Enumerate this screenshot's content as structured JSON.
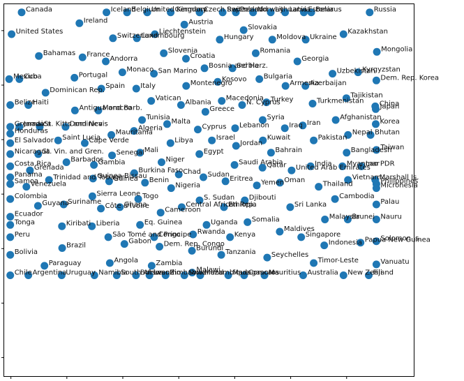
{
  "chart_data": {
    "type": "scatter",
    "title": "",
    "xlabel": "",
    "ylabel": "",
    "xlim": [
      -0.3,
      18.0
    ],
    "ylim": [
      -0.35,
      13.3
    ],
    "grid": false,
    "legend": "none",
    "point_color": "#1f77b4",
    "points": [
      {
        "label": "Canada",
        "x": 0.48,
        "y": 13.0
      },
      {
        "label": "Iceland",
        "x": 4.27,
        "y": 13.0
      },
      {
        "label": "Belgium",
        "x": 5.19,
        "y": 13.0
      },
      {
        "label": "United Kingdom",
        "x": 6.09,
        "y": 13.0
      },
      {
        "label": "Germany",
        "x": 7.14,
        "y": 13.0
      },
      {
        "label": "Czech Rep.",
        "x": 8.43,
        "y": 13.0
      },
      {
        "label": "Switzerland",
        "x": 9.46,
        "y": 13.0
      },
      {
        "label": "Poland",
        "x": 10.05,
        "y": 13.0
      },
      {
        "label": "Norway",
        "x": 10.82,
        "y": 13.0
      },
      {
        "label": "Lithuania",
        "x": 11.61,
        "y": 13.0
      },
      {
        "label": "Latvia",
        "x": 12.25,
        "y": 13.0
      },
      {
        "label": "Estonia",
        "x": 13.09,
        "y": 13.0
      },
      {
        "label": "Belarus",
        "x": 13.42,
        "y": 13.0
      },
      {
        "label": "Russia",
        "x": 16.03,
        "y": 13.0
      },
      {
        "label": "Ireland",
        "x": 3.06,
        "y": 12.6
      },
      {
        "label": "Austria",
        "x": 7.75,
        "y": 12.55
      },
      {
        "label": "Slovakia",
        "x": 10.4,
        "y": 12.35
      },
      {
        "label": "United States",
        "x": 0.03,
        "y": 12.2
      },
      {
        "label": "Liechtenstein",
        "x": 6.43,
        "y": 12.2
      },
      {
        "label": "Kazakhstan",
        "x": 14.86,
        "y": 12.2
      },
      {
        "label": "Switzerland",
        "x": 4.56,
        "y": 12.05
      },
      {
        "label": "Luxembourg",
        "x": 5.63,
        "y": 12.05
      },
      {
        "label": "Hungary",
        "x": 9.33,
        "y": 12.0
      },
      {
        "label": "Moldova",
        "x": 11.68,
        "y": 12.0
      },
      {
        "label": "Ukraine",
        "x": 13.17,
        "y": 12.0
      },
      {
        "label": "Mongolia",
        "x": 16.35,
        "y": 11.55
      },
      {
        "label": "Slovenia",
        "x": 6.83,
        "y": 11.5
      },
      {
        "label": "Romania",
        "x": 10.94,
        "y": 11.5
      },
      {
        "label": "Bahamas",
        "x": 1.25,
        "y": 11.4
      },
      {
        "label": "France",
        "x": 3.2,
        "y": 11.35
      },
      {
        "label": "Croatia",
        "x": 7.82,
        "y": 11.3
      },
      {
        "label": "Georgia",
        "x": 12.8,
        "y": 11.2
      },
      {
        "label": "Andorra",
        "x": 4.24,
        "y": 11.2
      },
      {
        "label": "Serbia",
        "x": 9.9,
        "y": 10.95
      },
      {
        "label": "Bosnia and Herz.",
        "x": 8.65,
        "y": 10.95
      },
      {
        "label": "Kyrgyzstan",
        "x": 15.51,
        "y": 10.8
      },
      {
        "label": "Monaco",
        "x": 4.98,
        "y": 10.8
      },
      {
        "label": "San Marino",
        "x": 6.39,
        "y": 10.75
      },
      {
        "label": "Uzbekistan",
        "x": 14.37,
        "y": 10.75
      },
      {
        "label": "Portugal",
        "x": 2.84,
        "y": 10.6
      },
      {
        "label": "Mexico",
        "x": -0.08,
        "y": 10.55
      },
      {
        "label": "Cuba",
        "x": 0.38,
        "y": 10.55
      },
      {
        "label": "Bulgaria",
        "x": 11.1,
        "y": 10.55
      },
      {
        "label": "Dem. Rep. Korea",
        "x": 16.33,
        "y": 10.5
      },
      {
        "label": "Kosovo",
        "x": 9.24,
        "y": 10.45
      },
      {
        "label": "Montenegro",
        "x": 7.83,
        "y": 10.3
      },
      {
        "label": "Armenia",
        "x": 12.27,
        "y": 10.3
      },
      {
        "label": "Azerbaijan",
        "x": 13.16,
        "y": 10.3
      },
      {
        "label": "Spain",
        "x": 4.04,
        "y": 10.2
      },
      {
        "label": "Italy",
        "x": 5.6,
        "y": 10.2
      },
      {
        "label": "Dominican Rep.",
        "x": 1.55,
        "y": 10.05
      },
      {
        "label": "Tajikistan",
        "x": 14.99,
        "y": 9.85
      },
      {
        "label": "Vatican",
        "x": 6.27,
        "y": 9.75
      },
      {
        "label": "Macedonia",
        "x": 9.42,
        "y": 9.75
      },
      {
        "label": "Turkey",
        "x": 11.42,
        "y": 9.7
      },
      {
        "label": "Albania",
        "x": 7.6,
        "y": 9.6
      },
      {
        "label": "N. Cyprus",
        "x": 10.33,
        "y": 9.6
      },
      {
        "label": "Turkmenistan",
        "x": 13.48,
        "y": 9.65
      },
      {
        "label": "Belize",
        "x": -0.03,
        "y": 9.6
      },
      {
        "label": "Haiti",
        "x": 0.78,
        "y": 9.6
      },
      {
        "label": "China",
        "x": 16.28,
        "y": 9.55
      },
      {
        "label": "Japan",
        "x": 16.3,
        "y": 9.45
      },
      {
        "label": "Antigua and Barb.",
        "x": 2.86,
        "y": 9.4
      },
      {
        "label": "Morocco",
        "x": 3.91,
        "y": 9.4
      },
      {
        "label": "Greece",
        "x": 8.69,
        "y": 9.35
      },
      {
        "label": "Tunisia",
        "x": 5.86,
        "y": 9.05
      },
      {
        "label": "Syria",
        "x": 11.25,
        "y": 9.05
      },
      {
        "label": "Afghanistan",
        "x": 14.51,
        "y": 9.05
      },
      {
        "label": "Korea",
        "x": 16.3,
        "y": 8.9
      },
      {
        "label": "Malta",
        "x": 6.98,
        "y": 8.9
      },
      {
        "label": "Iran",
        "x": 13.04,
        "y": 8.85
      },
      {
        "label": "Grenada",
        "x": -0.03,
        "y": 8.8
      },
      {
        "label": "Jamaica",
        "x": 0.38,
        "y": 8.8
      },
      {
        "label": "St. Kitts and Nevis",
        "x": 1.29,
        "y": 8.8
      },
      {
        "label": "Dominica",
        "x": 2.44,
        "y": 8.8
      },
      {
        "label": "Iraq",
        "x": 12.24,
        "y": 8.75
      },
      {
        "label": "Cyprus",
        "x": 8.35,
        "y": 8.7
      },
      {
        "label": "Lebanon",
        "x": 10.02,
        "y": 8.75
      },
      {
        "label": "Algeria",
        "x": 5.5,
        "y": 8.65
      },
      {
        "label": "Honduras",
        "x": -0.03,
        "y": 8.55
      },
      {
        "label": "Mauritania",
        "x": 4.49,
        "y": 8.5
      },
      {
        "label": "Nepal",
        "x": 15.06,
        "y": 8.5
      },
      {
        "label": "Bhutan",
        "x": 16.07,
        "y": 8.5
      },
      {
        "label": "Saint Lucia",
        "x": 2.11,
        "y": 8.3
      },
      {
        "label": "Israel",
        "x": 8.98,
        "y": 8.3
      },
      {
        "label": "Kuwait",
        "x": 11.26,
        "y": 8.3
      },
      {
        "label": "Pakistan",
        "x": 13.53,
        "y": 8.3
      },
      {
        "label": "El Salvador",
        "x": -0.03,
        "y": 8.2
      },
      {
        "label": "Cape Verde",
        "x": 3.3,
        "y": 8.2
      },
      {
        "label": "Libya",
        "x": 7.13,
        "y": 8.2
      },
      {
        "label": "Jordan",
        "x": 10.06,
        "y": 8.1
      },
      {
        "label": "Taiwan",
        "x": 16.33,
        "y": 7.95
      },
      {
        "label": "Bangladesh",
        "x": 15.0,
        "y": 7.85
      },
      {
        "label": "Mali",
        "x": 5.77,
        "y": 7.85
      },
      {
        "label": "Bahrain",
        "x": 11.62,
        "y": 7.85
      },
      {
        "label": "Nicaragua",
        "x": -0.03,
        "y": 7.8
      },
      {
        "label": "St. Vin. and Gren.",
        "x": 1.22,
        "y": 7.8
      },
      {
        "label": "Senegal",
        "x": 4.52,
        "y": 7.75
      },
      {
        "label": "Egypt",
        "x": 8.42,
        "y": 7.8
      },
      {
        "label": "Niger",
        "x": 6.73,
        "y": 7.5
      },
      {
        "label": "Barbados",
        "x": 2.48,
        "y": 7.5
      },
      {
        "label": "Gambia",
        "x": 3.71,
        "y": 7.4
      },
      {
        "label": "Saudi Arabia",
        "x": 9.99,
        "y": 7.4
      },
      {
        "label": "India",
        "x": 13.39,
        "y": 7.35
      },
      {
        "label": "Myanmar",
        "x": 14.81,
        "y": 7.35
      },
      {
        "label": "Lao PDR",
        "x": 15.66,
        "y": 7.35
      },
      {
        "label": "Costa Rica",
        "x": -0.03,
        "y": 7.35
      },
      {
        "label": "Qatar",
        "x": 11.24,
        "y": 7.3
      },
      {
        "label": "Grenada",
        "x": 0.85,
        "y": 7.2
      },
      {
        "label": "United Arab Emirates",
        "x": 12.54,
        "y": 7.2
      },
      {
        "label": "Burkina Faso",
        "x": 5.51,
        "y": 7.1
      },
      {
        "label": "Chad",
        "x": 7.5,
        "y": 7.05
      },
      {
        "label": "Sudan",
        "x": 8.6,
        "y": 6.95
      },
      {
        "label": "Panama",
        "x": -0.03,
        "y": 6.95
      },
      {
        "label": "Guinea-Bissau",
        "x": 3.67,
        "y": 6.9
      },
      {
        "label": "Trinidad and Tobago",
        "x": 1.7,
        "y": 6.85
      },
      {
        "label": "Vietnam",
        "x": 15.06,
        "y": 6.85
      },
      {
        "label": "Marshall Is.",
        "x": 16.28,
        "y": 6.85
      },
      {
        "label": "Eritrea",
        "x": 9.59,
        "y": 6.8
      },
      {
        "label": "Guinea",
        "x": 4.39,
        "y": 6.8
      },
      {
        "label": "Oman",
        "x": 12.02,
        "y": 6.75
      },
      {
        "label": "Benin",
        "x": 5.99,
        "y": 6.75
      },
      {
        "label": "Philippines",
        "x": 16.33,
        "y": 6.7
      },
      {
        "label": "Samoa",
        "x": -0.03,
        "y": 6.7
      },
      {
        "label": "Yemen",
        "x": 10.99,
        "y": 6.65
      },
      {
        "label": "Venezuela",
        "x": 0.69,
        "y": 6.6
      },
      {
        "label": "Thailand",
        "x": 13.75,
        "y": 6.6
      },
      {
        "label": "Nigeria",
        "x": 7.16,
        "y": 6.55
      },
      {
        "label": "Micronesia",
        "x": 16.33,
        "y": 6.55
      },
      {
        "label": "Sierra Leone",
        "x": 3.64,
        "y": 6.25
      },
      {
        "label": "Colombia",
        "x": -0.03,
        "y": 6.15
      },
      {
        "label": "Togo",
        "x": 5.69,
        "y": 6.15
      },
      {
        "label": "S. Sudan",
        "x": 8.43,
        "y": 6.1
      },
      {
        "label": "Djibouti",
        "x": 10.45,
        "y": 6.1
      },
      {
        "label": "Cambodia",
        "x": 14.48,
        "y": 6.15
      },
      {
        "label": "Suriname",
        "x": 2.36,
        "y": 5.95
      },
      {
        "label": "Palau",
        "x": 16.33,
        "y": 5.95
      },
      {
        "label": "Guyana",
        "x": 1.21,
        "y": 5.9
      },
      {
        "label": "Ghana",
        "x": 4.87,
        "y": 5.85
      },
      {
        "label": "Central African Rep.",
        "x": 7.63,
        "y": 5.85
      },
      {
        "label": "Ethiopia",
        "x": 9.52,
        "y": 5.85
      },
      {
        "label": "Sri Lanka",
        "x": 12.48,
        "y": 5.85
      },
      {
        "label": "Côte d'Ivoire",
        "x": 4.02,
        "y": 5.8
      },
      {
        "label": "Cameroon",
        "x": 6.69,
        "y": 5.65
      },
      {
        "label": "Ecuador",
        "x": -0.03,
        "y": 5.5
      },
      {
        "label": "Malaysia",
        "x": 14.03,
        "y": 5.4
      },
      {
        "label": "Brunei",
        "x": 15.05,
        "y": 5.4
      },
      {
        "label": "Nauru",
        "x": 16.33,
        "y": 5.4
      },
      {
        "label": "Somalia",
        "x": 10.57,
        "y": 5.3
      },
      {
        "label": "Tonga",
        "x": -0.03,
        "y": 5.2
      },
      {
        "label": "Kiribati",
        "x": 2.28,
        "y": 5.15
      },
      {
        "label": "Liberia",
        "x": 3.62,
        "y": 5.15
      },
      {
        "label": "Eq. Guinea",
        "x": 5.77,
        "y": 5.2
      },
      {
        "label": "Uganda",
        "x": 8.74,
        "y": 5.2
      },
      {
        "label": "Maldives",
        "x": 12.01,
        "y": 4.95
      },
      {
        "label": "Rwanda",
        "x": 8.14,
        "y": 4.85
      },
      {
        "label": "Kenya",
        "x": 9.79,
        "y": 4.75
      },
      {
        "label": "Singapore",
        "x": 12.97,
        "y": 4.75
      },
      {
        "label": "Peru",
        "x": -0.03,
        "y": 4.75
      },
      {
        "label": "São Tomé and Principe",
        "x": 4.35,
        "y": 4.75
      },
      {
        "label": "Congo",
        "x": 6.4,
        "y": 4.75
      },
      {
        "label": "Solomon Is.",
        "x": 16.33,
        "y": 4.6
      },
      {
        "label": "Papua New Guinea",
        "x": 15.62,
        "y": 4.55
      },
      {
        "label": "Gabon",
        "x": 5.07,
        "y": 4.5
      },
      {
        "label": "Indonesia",
        "x": 14.0,
        "y": 4.45
      },
      {
        "label": "Dem. Rep. Congo",
        "x": 6.64,
        "y": 4.4
      },
      {
        "label": "Brazil",
        "x": 2.29,
        "y": 4.35
      },
      {
        "label": "Burundi",
        "x": 8.09,
        "y": 4.25
      },
      {
        "label": "Tanzania",
        "x": 9.4,
        "y": 4.1
      },
      {
        "label": "Bolivia",
        "x": -0.03,
        "y": 4.1
      },
      {
        "label": "Seychelles",
        "x": 11.45,
        "y": 4.0
      },
      {
        "label": "Angola",
        "x": 4.42,
        "y": 3.8
      },
      {
        "label": "Timor-Leste",
        "x": 13.53,
        "y": 3.8
      },
      {
        "label": "Vanuatu",
        "x": 16.33,
        "y": 3.75
      },
      {
        "label": "Zambia",
        "x": 6.29,
        "y": 3.7
      },
      {
        "label": "Paraguay",
        "x": 1.5,
        "y": 3.7
      },
      {
        "label": "Malawi",
        "x": 8.1,
        "y": 3.45
      },
      {
        "label": "Chile",
        "x": -0.03,
        "y": 3.35
      },
      {
        "label": "Argentina",
        "x": 0.78,
        "y": 3.35
      },
      {
        "label": "Uruguay",
        "x": 2.27,
        "y": 3.35
      },
      {
        "label": "Namibia",
        "x": 3.73,
        "y": 3.35
      },
      {
        "label": "South Africa",
        "x": 4.73,
        "y": 3.35
      },
      {
        "label": "Botswana",
        "x": 5.59,
        "y": 3.35
      },
      {
        "label": "Lesotho",
        "x": 6.19,
        "y": 3.35
      },
      {
        "label": "Zimbabwe",
        "x": 6.91,
        "y": 3.35
      },
      {
        "label": "Swaziland",
        "x": 7.75,
        "y": 3.35
      },
      {
        "label": "Mozambique",
        "x": 8.46,
        "y": 3.35
      },
      {
        "label": "Madagascar",
        "x": 9.71,
        "y": 3.35
      },
      {
        "label": "Comoros",
        "x": 10.42,
        "y": 3.35
      },
      {
        "label": "Mauritius",
        "x": 11.33,
        "y": 3.35
      },
      {
        "label": "Australia",
        "x": 13.06,
        "y": 3.35
      },
      {
        "label": "New Zealand",
        "x": 14.86,
        "y": 3.35
      },
      {
        "label": "Fiji",
        "x": 15.99,
        "y": 3.35
      }
    ]
  }
}
